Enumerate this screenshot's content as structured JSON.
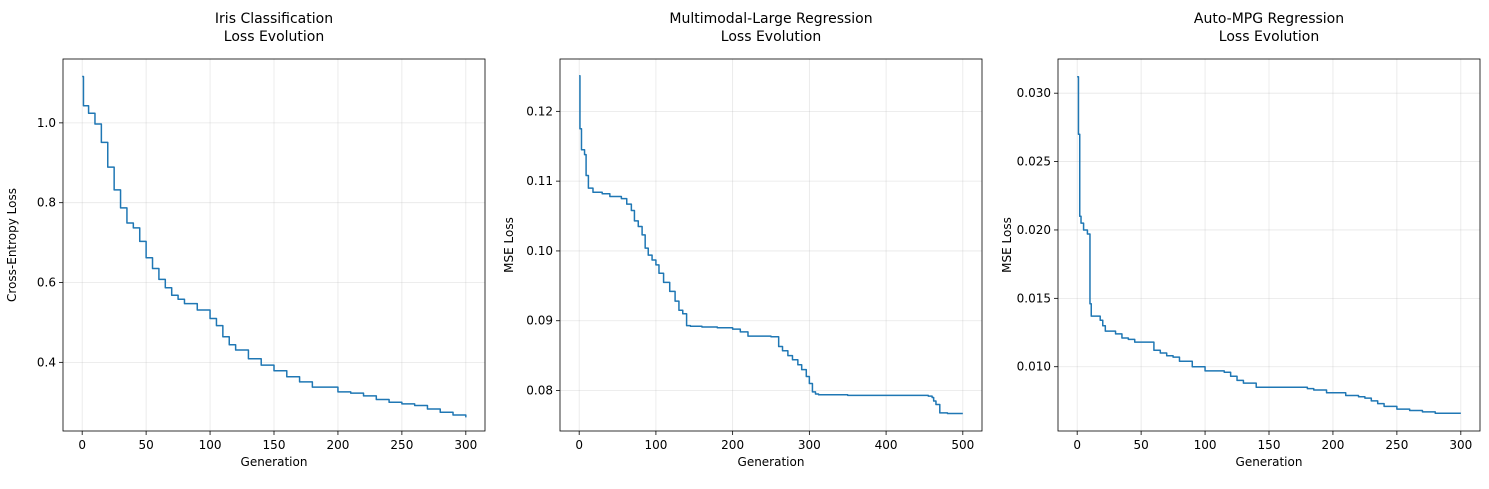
{
  "chart_data": [
    {
      "type": "line",
      "title": [
        "Iris Classification",
        "Loss Evolution"
      ],
      "xlabel": "Generation",
      "ylabel": "Cross-Entropy Loss",
      "xlim": [
        -15,
        315
      ],
      "ylim": [
        0.228,
        1.16
      ],
      "xticks": [
        0,
        50,
        100,
        150,
        200,
        250,
        300
      ],
      "xtick_labels": [
        "0",
        "50",
        "100",
        "150",
        "200",
        "250",
        "300"
      ],
      "yticks": [
        0.4,
        0.6,
        0.8,
        1.0
      ],
      "ytick_labels": [
        "0.4",
        "0.6",
        "0.8",
        "1.0"
      ],
      "grid": true,
      "color": "#1f77b4",
      "series": [
        {
          "x": [
            0,
            1,
            5,
            10,
            15,
            20,
            25,
            30,
            35,
            40,
            45,
            50,
            55,
            60,
            65,
            70,
            75,
            80,
            90,
            100,
            105,
            110,
            115,
            120,
            130,
            140,
            150,
            160,
            170,
            180,
            200,
            210,
            220,
            230,
            240,
            250,
            260,
            270,
            280,
            290,
            300
          ],
          "y": [
            1.116,
            1.043,
            1.024,
            0.997,
            0.951,
            0.889,
            0.832,
            0.787,
            0.749,
            0.737,
            0.703,
            0.662,
            0.635,
            0.608,
            0.587,
            0.568,
            0.558,
            0.547,
            0.531,
            0.51,
            0.492,
            0.464,
            0.444,
            0.431,
            0.409,
            0.393,
            0.379,
            0.364,
            0.351,
            0.338,
            0.326,
            0.323,
            0.316,
            0.307,
            0.3,
            0.296,
            0.292,
            0.283,
            0.275,
            0.268,
            0.262
          ]
        }
      ]
    },
    {
      "type": "line",
      "title": [
        "Multimodal-Large Regression",
        "Loss Evolution"
      ],
      "xlabel": "Generation",
      "ylabel": "MSE Loss",
      "xlim": [
        -25,
        525
      ],
      "ylim": [
        0.0742,
        0.1275
      ],
      "xticks": [
        0,
        100,
        200,
        300,
        400,
        500
      ],
      "xtick_labels": [
        "0",
        "100",
        "200",
        "300",
        "400",
        "500"
      ],
      "yticks": [
        0.08,
        0.09,
        0.1,
        0.11,
        0.12
      ],
      "ytick_labels": [
        "0.08",
        "0.09",
        "0.10",
        "0.11",
        "0.12"
      ],
      "grid": true,
      "color": "#1f77b4",
      "series": [
        {
          "x": [
            0,
            1,
            3,
            7,
            9,
            12,
            18,
            30,
            40,
            55,
            62,
            68,
            72,
            77,
            82,
            86,
            90,
            95,
            100,
            104,
            110,
            118,
            125,
            130,
            135,
            140,
            145,
            150,
            160,
            180,
            200,
            210,
            220,
            250,
            260,
            265,
            272,
            278,
            285,
            290,
            296,
            300,
            304,
            308,
            312,
            320,
            350,
            400,
            455,
            460,
            462,
            465,
            470,
            480,
            500
          ],
          "y": [
            0.1251,
            0.1175,
            0.1145,
            0.1138,
            0.1108,
            0.109,
            0.1084,
            0.1082,
            0.1078,
            0.1075,
            0.1067,
            0.1058,
            0.1043,
            0.1035,
            0.1023,
            0.1004,
            0.0994,
            0.0987,
            0.098,
            0.0968,
            0.0955,
            0.0942,
            0.0928,
            0.0915,
            0.091,
            0.0893,
            0.0892,
            0.0892,
            0.0891,
            0.089,
            0.0888,
            0.0884,
            0.0878,
            0.0877,
            0.0863,
            0.0857,
            0.085,
            0.0844,
            0.0837,
            0.083,
            0.082,
            0.081,
            0.0798,
            0.0795,
            0.0794,
            0.0794,
            0.0793,
            0.0793,
            0.0792,
            0.079,
            0.0785,
            0.078,
            0.0768,
            0.0767,
            0.0767
          ]
        }
      ]
    },
    {
      "type": "line",
      "title": [
        "Auto-MPG Regression",
        "Loss Evolution"
      ],
      "xlabel": "Generation",
      "ylabel": "MSE Loss",
      "xlim": [
        -15,
        315
      ],
      "ylim": [
        0.0053,
        0.0325
      ],
      "xticks": [
        0,
        50,
        100,
        150,
        200,
        250,
        300
      ],
      "xtick_labels": [
        "0",
        "50",
        "100",
        "150",
        "200",
        "250",
        "300"
      ],
      "yticks": [
        0.01,
        0.015,
        0.02,
        0.025,
        0.03
      ],
      "ytick_labels": [
        "0.010",
        "0.015",
        "0.020",
        "0.025",
        "0.030"
      ],
      "grid": true,
      "color": "#1f77b4",
      "series": [
        {
          "x": [
            0,
            1,
            2,
            3,
            5,
            8,
            10,
            11,
            12,
            18,
            20,
            22,
            30,
            35,
            40,
            45,
            60,
            65,
            70,
            75,
            80,
            90,
            100,
            115,
            120,
            125,
            130,
            140,
            160,
            175,
            180,
            185,
            195,
            205,
            210,
            220,
            225,
            230,
            235,
            240,
            250,
            260,
            270,
            280,
            300
          ],
          "y": [
            0.0312,
            0.027,
            0.021,
            0.0205,
            0.02,
            0.0197,
            0.0146,
            0.0137,
            0.0137,
            0.0134,
            0.013,
            0.0126,
            0.0124,
            0.0121,
            0.012,
            0.0118,
            0.0112,
            0.011,
            0.0108,
            0.0107,
            0.0104,
            0.01,
            0.0097,
            0.0096,
            0.0093,
            0.009,
            0.0088,
            0.0085,
            0.0085,
            0.0085,
            0.0084,
            0.0083,
            0.0081,
            0.0081,
            0.0079,
            0.0078,
            0.0077,
            0.0075,
            0.0073,
            0.0071,
            0.0069,
            0.0068,
            0.0067,
            0.0066,
            0.0066
          ]
        }
      ]
    }
  ]
}
